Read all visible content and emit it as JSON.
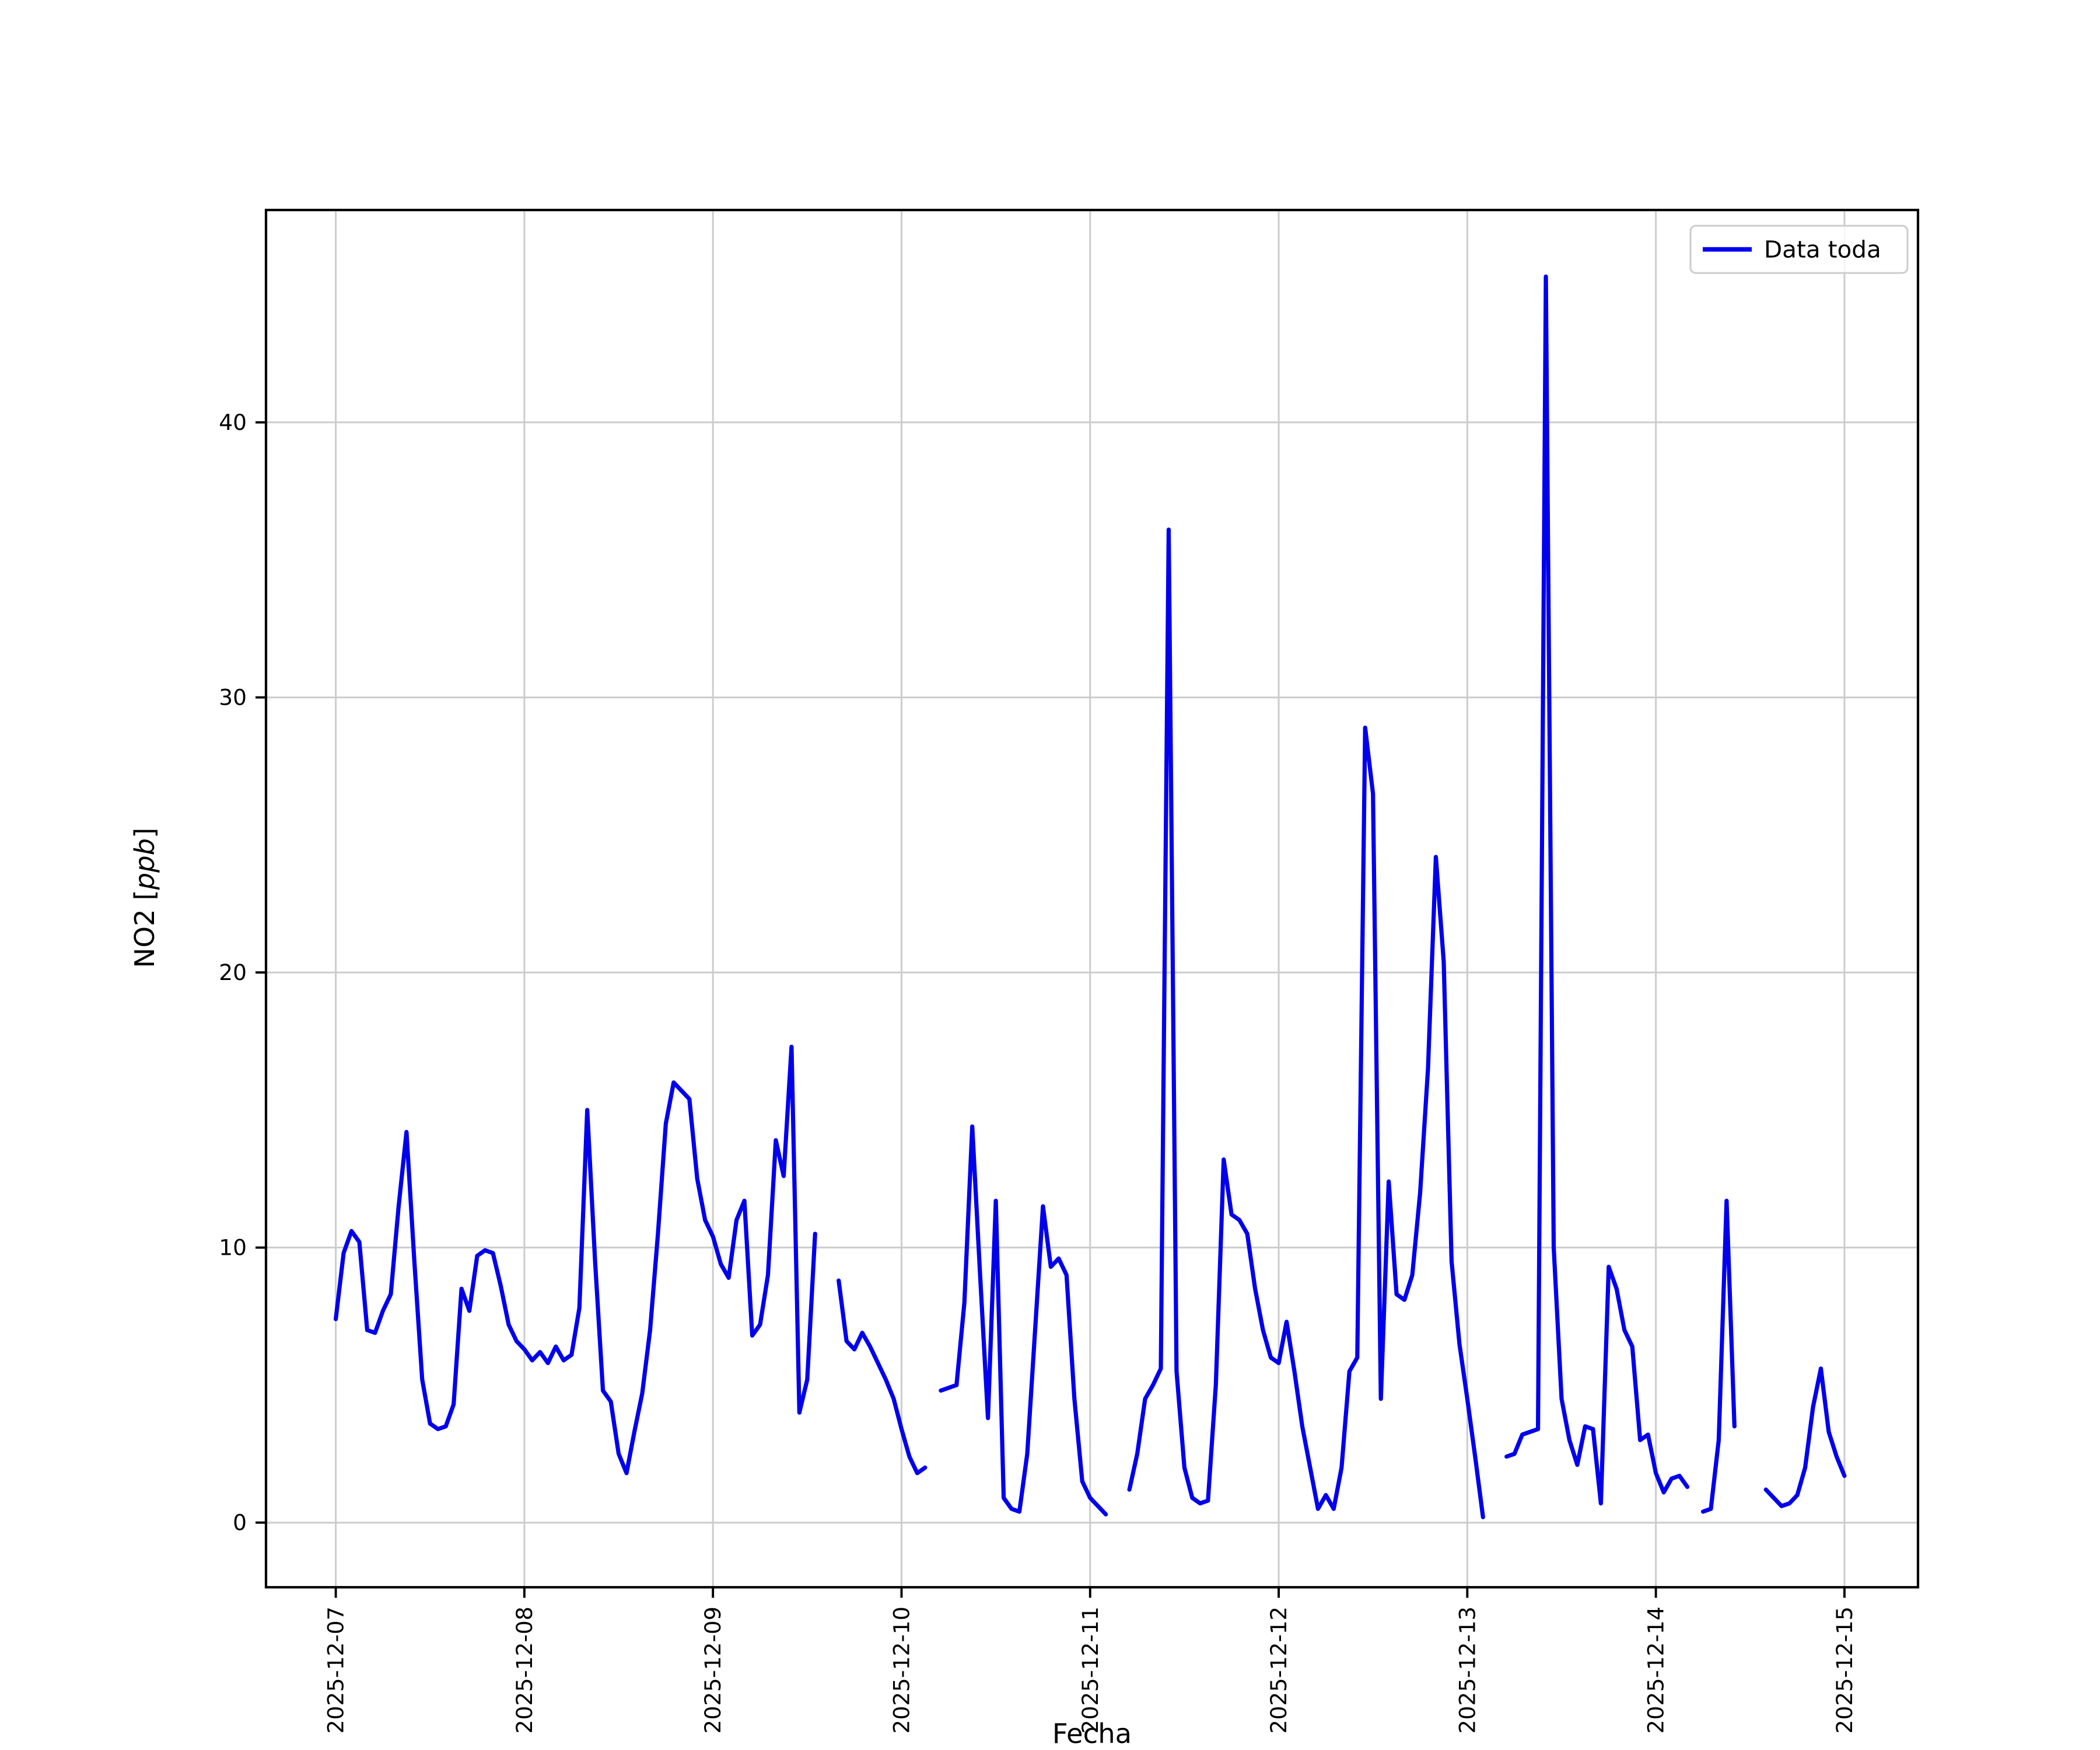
{
  "figure": {
    "background": "#ffffff",
    "line_color": "#0000ee",
    "grid_color": "#cccccc",
    "axis_color": "#000000"
  },
  "chart_data": {
    "type": "line",
    "title": "",
    "xlabel": "Fecha",
    "ylabel": "NO2 [ppb]",
    "ylabel_parts": {
      "prefix": "NO2 [",
      "math": "ppb",
      "suffix": "]"
    },
    "legend": {
      "label": "Data toda",
      "position": "upper right"
    },
    "grid": true,
    "x_start_date": "2025-12-07",
    "x_interval_hours": 1,
    "x_tick_labels": [
      "2025-12-07",
      "2025-12-08",
      "2025-12-09",
      "2025-12-10",
      "2025-12-11",
      "2025-12-12",
      "2025-12-13",
      "2025-12-14",
      "2025-12-15"
    ],
    "y_ticks": [
      0,
      10,
      20,
      30,
      40
    ],
    "ylim": [
      -2.35,
      47.72
    ],
    "xlim_days": [
      -0.37,
      8.39
    ],
    "values": [
      7.4,
      9.8,
      10.6,
      10.2,
      7.0,
      6.9,
      7.7,
      8.3,
      11.5,
      14.2,
      9.5,
      5.2,
      3.6,
      3.4,
      3.5,
      4.3,
      8.5,
      7.7,
      9.7,
      9.9,
      9.8,
      8.6,
      7.2,
      6.6,
      6.3,
      5.9,
      6.2,
      5.8,
      6.4,
      5.9,
      6.1,
      7.8,
      15.0,
      9.5,
      4.8,
      4.4,
      2.5,
      1.8,
      3.3,
      4.7,
      7.0,
      10.5,
      14.5,
      16.0,
      15.7,
      15.4,
      12.5,
      11.0,
      10.4,
      9.4,
      8.9,
      11.0,
      11.7,
      6.8,
      7.2,
      9.0,
      13.9,
      12.6,
      17.3,
      4.0,
      5.2,
      10.5,
      null,
      null,
      8.8,
      6.6,
      6.3,
      6.9,
      6.4,
      5.8,
      5.2,
      4.5,
      3.4,
      2.4,
      1.8,
      2.0,
      null,
      4.8,
      4.9,
      5.0,
      8.0,
      14.4,
      9.0,
      3.8,
      11.7,
      0.9,
      0.5,
      0.4,
      2.5,
      7.0,
      11.5,
      9.3,
      9.6,
      9.0,
      4.5,
      1.5,
      0.9,
      0.6,
      0.3,
      null,
      null,
      1.2,
      2.5,
      4.5,
      5.0,
      5.6,
      36.1,
      5.5,
      2.0,
      0.9,
      0.7,
      0.8,
      5.0,
      13.2,
      11.2,
      11.0,
      10.5,
      8.5,
      7.0,
      6.0,
      5.8,
      7.3,
      5.5,
      3.5,
      2.0,
      0.5,
      1.0,
      0.5,
      2.0,
      5.5,
      6.0,
      28.9,
      26.5,
      4.5,
      12.4,
      8.3,
      8.1,
      9.0,
      12.0,
      16.5,
      24.2,
      20.4,
      9.5,
      6.5,
      4.5,
      2.4,
      0.2,
      null,
      null,
      2.4,
      2.5,
      3.2,
      3.3,
      3.4,
      45.3,
      10.0,
      4.5,
      3.0,
      2.1,
      3.5,
      3.4,
      0.7,
      9.3,
      8.5,
      7.0,
      6.4,
      3.0,
      3.2,
      1.8,
      1.1,
      1.6,
      1.7,
      1.3,
      null,
      0.4,
      0.5,
      3.0,
      11.7,
      3.5,
      null,
      null,
      null,
      1.2,
      0.9,
      0.6,
      0.7,
      1.0,
      2.0,
      4.2,
      5.6,
      3.3,
      2.4,
      1.7
    ]
  }
}
